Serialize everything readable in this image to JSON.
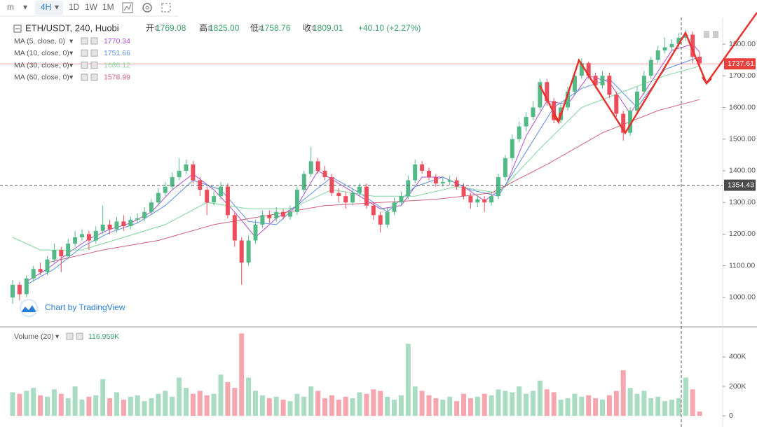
{
  "toolbar": {
    "items": [
      "m",
      "4H",
      "1D",
      "1W",
      "1M"
    ],
    "selected": "4H"
  },
  "chart_data": {
    "type": "candlestick",
    "symbol": "ETH/USDT, 240, Huobi",
    "ohlc_legend": [
      {
        "label": "开=",
        "value": "1769.08"
      },
      {
        "label": "高=",
        "value": "1825.00"
      },
      {
        "label": "低=",
        "value": "1758.76"
      },
      {
        "label": "收=",
        "value": "1809.01"
      }
    ],
    "change": "+40.10 (+2.27%)",
    "watermark": "Chart by TradingView",
    "up_color": "#53b987",
    "down_color": "#eb4d5c",
    "ylim": [
      907,
      1884
    ],
    "yticks": [
      {
        "value": 1000,
        "label": "1000.00"
      },
      {
        "value": 1100,
        "label": "1100.00"
      },
      {
        "value": 1200,
        "label": "1200.00"
      },
      {
        "value": 1300,
        "label": "1300.00"
      },
      {
        "value": 1400,
        "label": "1400.00"
      },
      {
        "value": 1500,
        "label": "1500.00"
      },
      {
        "value": 1600,
        "label": "1600.00"
      },
      {
        "value": 1700,
        "label": "1700.00"
      },
      {
        "value": 1800,
        "label": "1800.00"
      }
    ],
    "last_price": 1737.61,
    "crosshair_price": 1354.43,
    "open": [
      1000,
      1040,
      1010,
      1060,
      1090,
      1080,
      1120,
      1150,
      1130,
      1170,
      1190,
      1200,
      1180,
      1210,
      1230,
      1215,
      1240,
      1225,
      1245,
      1250,
      1270,
      1300,
      1330,
      1350,
      1380,
      1400,
      1420,
      1370,
      1340,
      1300,
      1320,
      1350,
      1260,
      1180,
      1110,
      1180,
      1230,
      1260,
      1250,
      1270,
      1255,
      1270,
      1340,
      1390,
      1430,
      1400,
      1380,
      1330,
      1320,
      1300,
      1330,
      1350,
      1290,
      1260,
      1230,
      1270,
      1300,
      1320,
      1370,
      1420,
      1400,
      1380,
      1360,
      1365,
      1370,
      1350,
      1320,
      1300,
      1310,
      1300,
      1320,
      1380,
      1440,
      1500,
      1540,
      1570,
      1600,
      1680,
      1620,
      1560,
      1600,
      1650,
      1700,
      1740,
      1700,
      1670,
      1700,
      1640,
      1580,
      1520,
      1590,
      1650,
      1700,
      1750,
      1780,
      1790,
      1800,
      1820,
      1830,
      1760
    ],
    "high": [
      1055,
      1050,
      1070,
      1100,
      1110,
      1130,
      1170,
      1160,
      1185,
      1210,
      1215,
      1210,
      1225,
      1290,
      1245,
      1255,
      1260,
      1255,
      1265,
      1285,
      1310,
      1345,
      1365,
      1395,
      1440,
      1435,
      1430,
      1380,
      1350,
      1335,
      1365,
      1360,
      1270,
      1190,
      1195,
      1245,
      1275,
      1275,
      1285,
      1280,
      1290,
      1350,
      1400,
      1475,
      1440,
      1415,
      1390,
      1345,
      1335,
      1345,
      1360,
      1360,
      1300,
      1270,
      1285,
      1315,
      1335,
      1385,
      1435,
      1430,
      1410,
      1390,
      1380,
      1385,
      1380,
      1360,
      1330,
      1325,
      1320,
      1335,
      1390,
      1450,
      1515,
      1555,
      1585,
      1620,
      1690,
      1690,
      1630,
      1615,
      1665,
      1715,
      1755,
      1745,
      1710,
      1715,
      1710,
      1650,
      1590,
      1600,
      1665,
      1715,
      1760,
      1795,
      1820,
      1815,
      1835,
      1845,
      1840,
      1775
    ],
    "low": [
      980,
      990,
      1000,
      1050,
      1070,
      1070,
      1110,
      1080,
      1120,
      1160,
      1180,
      1150,
      1170,
      1200,
      1200,
      1205,
      1210,
      1215,
      1235,
      1240,
      1260,
      1290,
      1320,
      1340,
      1370,
      1390,
      1360,
      1320,
      1260,
      1290,
      1310,
      1250,
      1160,
      1040,
      1100,
      1170,
      1220,
      1235,
      1240,
      1245,
      1245,
      1260,
      1330,
      1380,
      1390,
      1370,
      1320,
      1300,
      1280,
      1290,
      1320,
      1280,
      1245,
      1205,
      1220,
      1260,
      1290,
      1310,
      1360,
      1390,
      1370,
      1350,
      1350,
      1355,
      1340,
      1310,
      1280,
      1285,
      1270,
      1290,
      1310,
      1370,
      1430,
      1490,
      1525,
      1560,
      1590,
      1605,
      1550,
      1550,
      1590,
      1640,
      1690,
      1690,
      1660,
      1660,
      1630,
      1570,
      1495,
      1510,
      1580,
      1640,
      1690,
      1740,
      1770,
      1780,
      1790,
      1810,
      1740,
      1720
    ],
    "close": [
      1040,
      1010,
      1060,
      1090,
      1080,
      1120,
      1150,
      1130,
      1170,
      1190,
      1200,
      1180,
      1210,
      1230,
      1215,
      1240,
      1225,
      1245,
      1250,
      1270,
      1300,
      1330,
      1350,
      1380,
      1400,
      1420,
      1370,
      1340,
      1300,
      1320,
      1350,
      1260,
      1180,
      1110,
      1180,
      1230,
      1260,
      1250,
      1270,
      1255,
      1270,
      1340,
      1390,
      1430,
      1400,
      1380,
      1330,
      1320,
      1300,
      1330,
      1350,
      1290,
      1260,
      1230,
      1270,
      1300,
      1320,
      1370,
      1420,
      1400,
      1380,
      1360,
      1365,
      1370,
      1350,
      1320,
      1300,
      1310,
      1300,
      1320,
      1380,
      1440,
      1500,
      1540,
      1570,
      1600,
      1680,
      1620,
      1560,
      1600,
      1650,
      1700,
      1740,
      1700,
      1670,
      1700,
      1640,
      1580,
      1520,
      1590,
      1650,
      1700,
      1750,
      1780,
      1790,
      1800,
      1820,
      1830,
      1760,
      1740
    ],
    "moving_averages": [
      {
        "name": "MA (5, close, 0)",
        "value": 1770.34,
        "color": "#b04fd0",
        "x": [
          2,
          5,
          8,
          11,
          14,
          17,
          20,
          23,
          26,
          29,
          32,
          35,
          38,
          41,
          44,
          47,
          50,
          53,
          56,
          59,
          62,
          65,
          68,
          71,
          74,
          77,
          80,
          83,
          86,
          89,
          92,
          95,
          98,
          99
        ],
        "values": [
          1050,
          1090,
          1140,
          1185,
          1215,
          1235,
          1270,
          1340,
          1390,
          1340,
          1270,
          1190,
          1250,
          1290,
          1400,
          1360,
          1320,
          1280,
          1290,
          1380,
          1380,
          1350,
          1305,
          1350,
          1510,
          1620,
          1610,
          1700,
          1680,
          1580,
          1680,
          1780,
          1800,
          1775
        ]
      },
      {
        "name": "MA (10, close, 0)",
        "value": 1751.66,
        "color": "#5b8fe0",
        "x": [
          2,
          6,
          10,
          14,
          18,
          22,
          26,
          30,
          34,
          38,
          42,
          46,
          50,
          54,
          58,
          62,
          66,
          70,
          74,
          78,
          82,
          86,
          90,
          94,
          99
        ],
        "values": [
          1040,
          1090,
          1160,
          1205,
          1235,
          1290,
          1370,
          1340,
          1240,
          1230,
          1310,
          1380,
          1330,
          1270,
          1350,
          1380,
          1340,
          1320,
          1460,
          1600,
          1660,
          1690,
          1600,
          1720,
          1760
        ]
      },
      {
        "name": "MA (30, close, 0)",
        "value": 1686.12,
        "color": "#7ed59b",
        "x": [
          0,
          4,
          10,
          16,
          22,
          28,
          34,
          40,
          46,
          52,
          58,
          64,
          70,
          76,
          82,
          88,
          94,
          99
        ],
        "values": [
          1190,
          1150,
          1150,
          1190,
          1230,
          1300,
          1280,
          1280,
          1340,
          1320,
          1320,
          1350,
          1330,
          1470,
          1600,
          1650,
          1700,
          1730
        ]
      },
      {
        "name": "MA (60, close, 0)",
        "value": 1578.99,
        "color": "#d0607e",
        "x": [
          5,
          13,
          21,
          29,
          37,
          45,
          53,
          61,
          69,
          77,
          85,
          93,
          99
        ],
        "values": [
          1110,
          1150,
          1180,
          1230,
          1260,
          1290,
          1300,
          1310,
          1330,
          1420,
          1520,
          1590,
          1625
        ]
      }
    ],
    "volume": {
      "name": "Volume (20)",
      "current": "116.959K",
      "up_color": "#a9dcc3",
      "down_color": "#f5a6ae",
      "ylim": [
        -28000,
        590000
      ],
      "yticks": [
        0,
        {
          "value": 200000,
          "label": "200K"
        },
        {
          "value": 400000,
          "label": "400K"
        }
      ],
      "values": [
        160000,
        150000,
        170000,
        190000,
        140000,
        130000,
        180000,
        150000,
        120000,
        200000,
        110000,
        130000,
        140000,
        250000,
        120000,
        160000,
        110000,
        130000,
        140000,
        100000,
        120000,
        150000,
        170000,
        130000,
        260000,
        190000,
        150000,
        170000,
        140000,
        150000,
        280000,
        230000,
        190000,
        560000,
        260000,
        170000,
        140000,
        120000,
        130000,
        110000,
        100000,
        150000,
        130000,
        200000,
        170000,
        120000,
        140000,
        110000,
        130000,
        120000,
        160000,
        150000,
        180000,
        170000,
        130000,
        110000,
        140000,
        490000,
        200000,
        170000,
        140000,
        120000,
        110000,
        130000,
        100000,
        150000,
        120000,
        130000,
        150000,
        140000,
        180000,
        170000,
        160000,
        200000,
        150000,
        170000,
        240000,
        180000,
        160000,
        110000,
        120000,
        150000,
        130000,
        140000,
        120000,
        110000,
        140000,
        170000,
        310000,
        190000,
        150000,
        170000,
        120000,
        130000,
        100000,
        110000,
        120000,
        260000,
        180000,
        30000
      ]
    }
  }
}
